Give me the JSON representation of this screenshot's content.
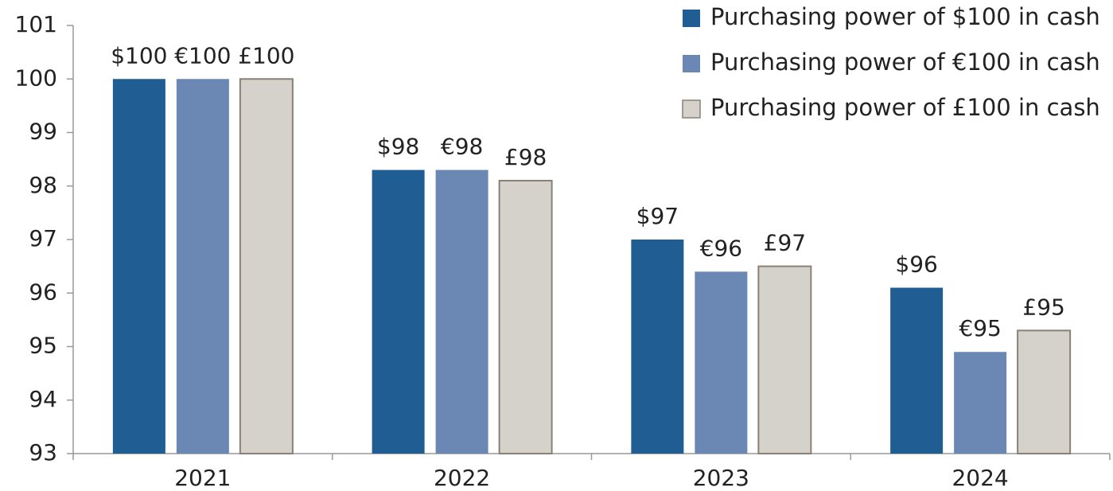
{
  "chart_data": {
    "type": "bar",
    "categories": [
      "2021",
      "2022",
      "2023",
      "2024"
    ],
    "series": [
      {
        "name": "Purchasing power of $100 in cash",
        "color": "#1f5d92",
        "values": [
          100,
          98.3,
          97.0,
          96.1
        ],
        "value_labels": [
          "$100",
          "$98",
          "$97",
          "$96"
        ]
      },
      {
        "name": "Purchasing power of €100 in cash",
        "color": "#6a88b3",
        "values": [
          100,
          98.3,
          96.4,
          94.9
        ],
        "value_labels": [
          "€100",
          "€98",
          "€96",
          "€95"
        ]
      },
      {
        "name": "Purchasing power of £100 in cash",
        "color": "#d5d2cc",
        "values": [
          100,
          98.1,
          96.5,
          95.3
        ],
        "value_labels": [
          "£100",
          "£98",
          "£97",
          "£95"
        ]
      }
    ],
    "ylim": [
      93,
      101
    ],
    "yticks": [
      93,
      94,
      95,
      96,
      97,
      98,
      99,
      100,
      101
    ],
    "grid": false,
    "legend": "top-right"
  }
}
